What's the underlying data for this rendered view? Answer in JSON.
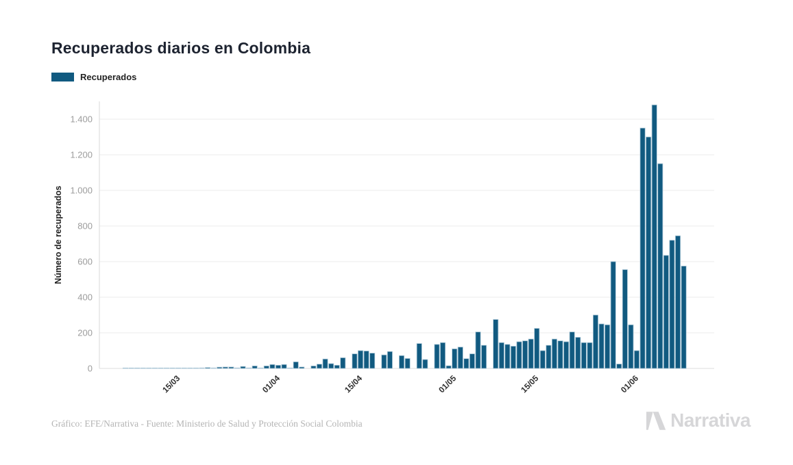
{
  "title": "Recuperados diarios en Colombia",
  "legend": {
    "label": "Recuperados",
    "swatch_color": "#115A80"
  },
  "footer": {
    "credit": "Gráfico: EFE/Narrativa - Fuente: Ministerio de Salud y Protección Social Colombia"
  },
  "logo": {
    "text": "Narrativa"
  },
  "chart_data": {
    "type": "bar",
    "title": "Recuperados diarios en Colombia",
    "ylabel": "Número de recuperados",
    "ylim": [
      0,
      1500
    ],
    "grid": true,
    "legend_position": "top-left",
    "bar_color": "#115A80",
    "bar_stroke": "#A9C6D6",
    "grid_color": "#ebebeb",
    "axis_color": "#d9d9d9",
    "y_tick_color": "#9c9c9c",
    "x_tick_color": "#2f2f2f",
    "y_ticks": {
      "values": [
        0,
        200,
        400,
        600,
        800,
        1000,
        1200,
        1400
      ],
      "labels": [
        "0",
        "200",
        "400",
        "600",
        "800",
        "1.000",
        "1.200",
        "1.400"
      ]
    },
    "x_ticks": {
      "indices": [
        9,
        26,
        40,
        56,
        70,
        87
      ],
      "labels": [
        "15/03",
        "01/04",
        "15/04",
        "01/05",
        "15/05",
        "01/06"
      ]
    },
    "x": [
      "06/03",
      "07/03",
      "08/03",
      "09/03",
      "10/03",
      "11/03",
      "12/03",
      "13/03",
      "14/03",
      "15/03",
      "16/03",
      "17/03",
      "18/03",
      "19/03",
      "20/03",
      "21/03",
      "22/03",
      "23/03",
      "24/03",
      "25/03",
      "26/03",
      "27/03",
      "28/03",
      "29/03",
      "30/03",
      "31/03",
      "01/04",
      "02/04",
      "03/04",
      "04/04",
      "05/04",
      "06/04",
      "07/04",
      "08/04",
      "09/04",
      "10/04",
      "11/04",
      "12/04",
      "13/04",
      "14/04",
      "15/04",
      "16/04",
      "17/04",
      "18/04",
      "19/04",
      "20/04",
      "21/04",
      "22/04",
      "23/04",
      "24/04",
      "25/04",
      "26/04",
      "27/04",
      "28/04",
      "29/04",
      "30/04",
      "01/05",
      "02/05",
      "03/05",
      "04/05",
      "05/05",
      "06/05",
      "07/05",
      "08/05",
      "09/05",
      "10/05",
      "11/05",
      "12/05",
      "13/05",
      "14/05",
      "15/05",
      "16/05",
      "17/05",
      "18/05",
      "19/05",
      "20/05",
      "21/05",
      "22/05",
      "23/05",
      "24/05",
      "25/05",
      "26/05",
      "27/05",
      "28/05",
      "29/05",
      "30/05",
      "31/05",
      "01/06",
      "02/06",
      "03/06",
      "04/06",
      "05/06",
      "06/06",
      "07/06",
      "08/06",
      "09/06"
    ],
    "series": [
      {
        "name": "Recuperados",
        "values": [
          1,
          1,
          2,
          1,
          1,
          2,
          1,
          2,
          1,
          2,
          1,
          2,
          2,
          3,
          5,
          3,
          7,
          8,
          8,
          3,
          11,
          3,
          14,
          2,
          14,
          22,
          18,
          22,
          2,
          37,
          8,
          0,
          14,
          24,
          53,
          27,
          18,
          60,
          0,
          82,
          100,
          98,
          86,
          0,
          76,
          95,
          0,
          72,
          56,
          0,
          140,
          50,
          0,
          135,
          145,
          15,
          110,
          120,
          55,
          82,
          205,
          130,
          0,
          275,
          145,
          135,
          125,
          150,
          155,
          165,
          225,
          100,
          130,
          165,
          155,
          150,
          205,
          175,
          145,
          145,
          300,
          250,
          245,
          600,
          25,
          555,
          245,
          100,
          1350,
          1300,
          1480,
          1150,
          635,
          720,
          745,
          575
        ]
      }
    ]
  }
}
